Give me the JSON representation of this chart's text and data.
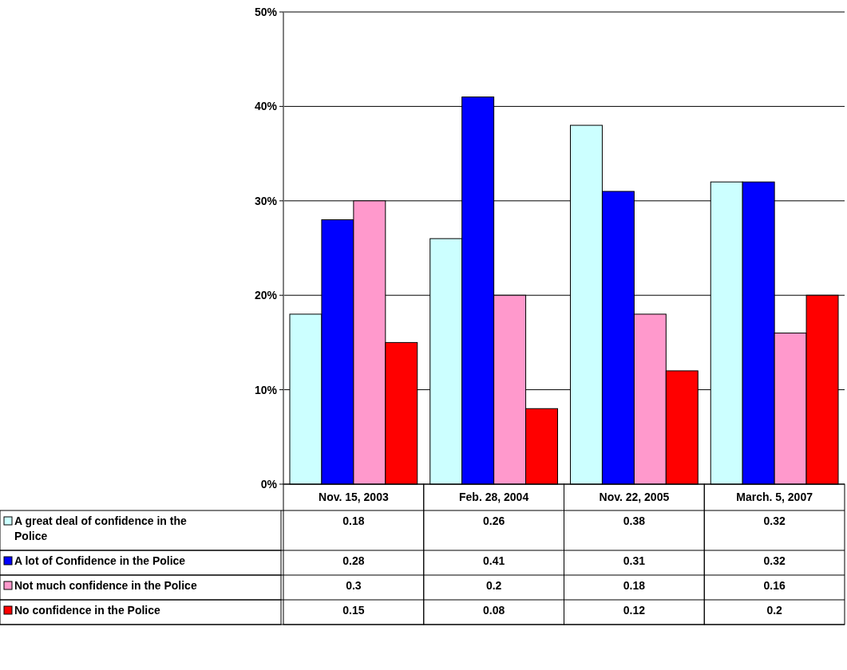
{
  "chart_data": {
    "type": "bar",
    "categories": [
      "Nov. 15, 2003",
      "Feb. 28, 2004",
      "Nov. 22, 2005",
      "March. 5, 2007"
    ],
    "series": [
      {
        "name": "A great deal of confidence in the Police",
        "color": "#ccffff",
        "values": [
          0.18,
          0.26,
          0.38,
          0.32
        ]
      },
      {
        "name": "A lot of Confidence in the Police",
        "color": "#0000ff",
        "values": [
          0.28,
          0.41,
          0.31,
          0.32
        ]
      },
      {
        "name": "Not much confidence in the Police",
        "color": "#ff99cc",
        "values": [
          0.3,
          0.2,
          0.18,
          0.16
        ]
      },
      {
        "name": "No confidence in the Police",
        "color": "#ff0000",
        "values": [
          0.15,
          0.08,
          0.12,
          0.2
        ]
      }
    ],
    "ylim": [
      0,
      0.5
    ],
    "yticks": [
      {
        "value": 0,
        "label": "0%"
      },
      {
        "value": 0.1,
        "label": "10%"
      },
      {
        "value": 0.2,
        "label": "20%"
      },
      {
        "value": 0.3,
        "label": "30%"
      },
      {
        "value": 0.4,
        "label": "40%"
      },
      {
        "value": 0.5,
        "label": "50%"
      }
    ],
    "grid": "y",
    "data_labels": true,
    "legend": "bottom"
  }
}
